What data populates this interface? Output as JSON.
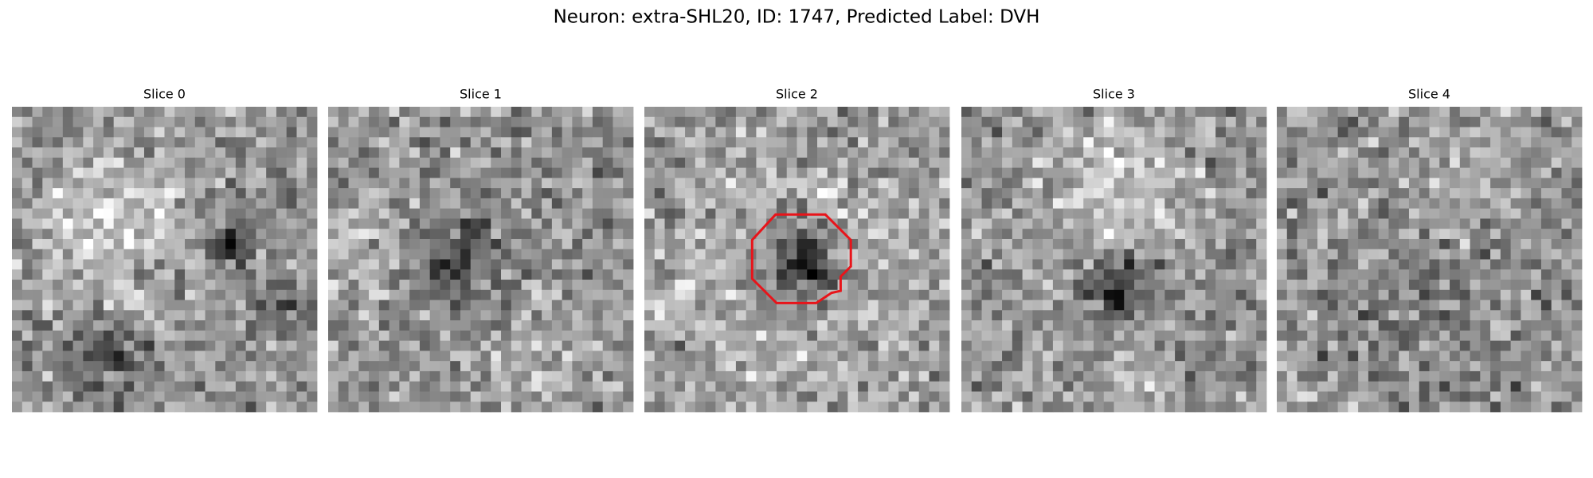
{
  "header": {
    "title": "Neuron: extra-SHL20, ID: 1747, Predicted Label: DVH"
  },
  "panels": [
    {
      "title": "Slice 0"
    },
    {
      "title": "Slice 1"
    },
    {
      "title": "Slice 2"
    },
    {
      "title": "Slice 3"
    },
    {
      "title": "Slice 4"
    }
  ]
}
